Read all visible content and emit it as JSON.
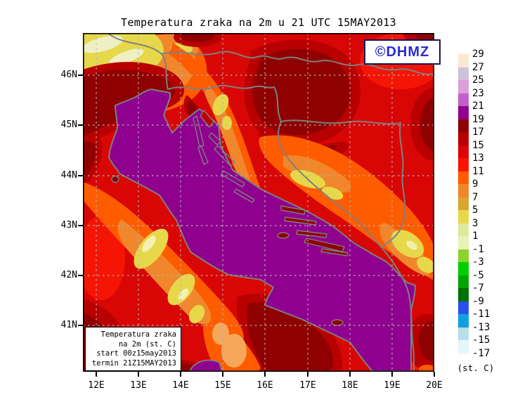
{
  "title": "Temperatura zraka na 2m u 21 UTC 15MAY2013",
  "watermark": {
    "text": "©DHMZ",
    "color": "#2B2BD5"
  },
  "info_box": {
    "lines": [
      "Temperatura zraka",
      "na 2m (st. C)",
      "start 00z15may2013",
      "termin 21Z15MAY2013"
    ]
  },
  "axes": {
    "lat_labels": [
      "46N",
      "45N",
      "44N",
      "43N",
      "42N",
      "41N"
    ],
    "lon_labels": [
      "12E",
      "13E",
      "14E",
      "15E",
      "16E",
      "17E",
      "18E",
      "19E",
      "20E"
    ]
  },
  "legend": {
    "unit": "(st. C)",
    "boundary_labels": [
      "29",
      "27",
      "25",
      "23",
      "21",
      "19",
      "17",
      "15",
      "13",
      "11",
      "9",
      "7",
      "5",
      "3",
      "1",
      "-1",
      "-3",
      "-5",
      "-7",
      "-9",
      "-11",
      "-13",
      "-15",
      "-17"
    ],
    "band_colors": [
      "#FBE8D3",
      "#CEC1DB",
      "#DC9FDC",
      "#C360CA",
      "#8F008F",
      "#8F0000",
      "#B80000",
      "#DC0404",
      "#FA1400",
      "#FF5C00",
      "#F0872C",
      "#D9A62E",
      "#E6D84A",
      "#DFE89D",
      "#EAF2B6",
      "#8CD42C",
      "#00CE00",
      "#00A400",
      "#007000",
      "#2A50EC",
      "#10A0E0",
      "#B8DEE8",
      "#E4F7F9"
    ]
  },
  "map_colors": {
    "sea": "#8F008F",
    "coastline": "#7F7F7F",
    "graticule": "#B3B3B3",
    "base_land": "#D90606"
  }
}
